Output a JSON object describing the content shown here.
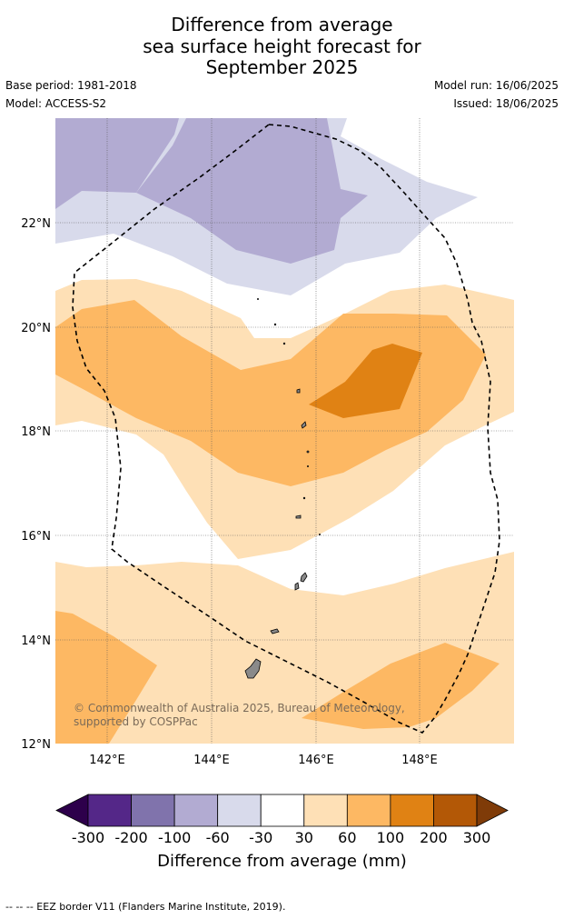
{
  "header": {
    "title_lines": [
      "Difference from average",
      "sea surface height forecast for",
      "September 2025"
    ],
    "base_period": "Base period: 1981-2018",
    "model": "Model: ACCESS-S2",
    "model_run": "Model run: 16/06/2025",
    "issued": "Issued: 18/06/2025"
  },
  "map": {
    "lon_ticks": [
      "142°E",
      "144°E",
      "146°E",
      "148°E"
    ],
    "lat_ticks": [
      "22°N",
      "20°N",
      "18°N",
      "16°N",
      "14°N",
      "12°N"
    ],
    "copyright": "© Commonwealth of Australia 2025, Bureau of Meteorology, supported by COSPPac",
    "eez_line_style": "dashed-black",
    "land_color": "#8a8a8a"
  },
  "colorbar": {
    "tick_labels": [
      "-300",
      "-200",
      "-100",
      "-60",
      "-30",
      "30",
      "60",
      "100",
      "200",
      "300"
    ],
    "colors": [
      "#2d004b",
      "#542788",
      "#8073ac",
      "#b2abd2",
      "#d8daeb",
      "#ffffff",
      "#fee0b6",
      "#fdb863",
      "#e08214",
      "#b35806",
      "#7f3b08"
    ],
    "label": "Difference from average (mm)"
  },
  "footnote": "--  --  -- EEZ border V11 (Flanders Marine Institute, 2019)."
}
